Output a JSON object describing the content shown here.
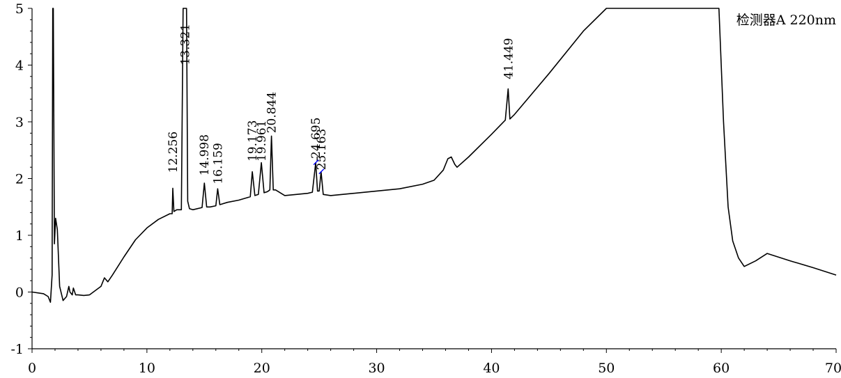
{
  "chart_data": {
    "type": "line",
    "title": "检测器A 220nm",
    "xlabel": "",
    "ylabel": "",
    "xlim": [
      0,
      70
    ],
    "ylim": [
      -1,
      5
    ],
    "x_ticks": [
      0,
      10,
      20,
      30,
      40,
      50,
      60,
      70
    ],
    "y_ticks": [
      -1,
      0,
      1,
      2,
      3,
      4,
      5
    ],
    "grid": false,
    "colors": {
      "trace": "#000000",
      "annotation_marker": "#0000ff"
    },
    "peak_labels": [
      {
        "label": "12.256",
        "x": 12.256
      },
      {
        "label": "13.321",
        "x": 13.321
      },
      {
        "label": "14.998",
        "x": 14.998
      },
      {
        "label": "16.159",
        "x": 16.159
      },
      {
        "label": "19.173",
        "x": 19.173
      },
      {
        "label": "19.961",
        "x": 19.961
      },
      {
        "label": "20.844",
        "x": 20.844
      },
      {
        "label": "24.695",
        "x": 24.695
      },
      {
        "label": "25.163",
        "x": 25.163
      },
      {
        "label": "41.449",
        "x": 41.449
      }
    ],
    "series": [
      {
        "x": [
          0.0,
          1.0,
          1.4,
          1.6,
          1.75,
          1.8,
          1.85,
          1.95,
          2.05,
          2.2,
          2.4,
          2.7,
          3.0,
          3.2,
          3.3,
          3.5,
          3.6,
          3.8,
          4.0,
          4.5,
          5.0,
          6.0,
          6.3,
          6.6,
          7.0,
          8.0,
          9.0,
          10.0,
          11.0,
          12.0,
          12.2,
          12.256,
          12.35,
          12.6,
          13.0,
          13.15,
          13.3,
          13.45,
          13.55,
          13.7,
          14.0,
          14.8,
          14.998,
          15.2,
          15.5,
          16.0,
          16.159,
          16.35,
          17.0,
          18.0,
          19.0,
          19.173,
          19.4,
          19.7,
          19.961,
          20.2,
          20.5,
          20.7,
          20.844,
          21.0,
          21.2,
          22.0,
          23.0,
          24.0,
          24.4,
          24.695,
          24.85,
          25.0,
          25.163,
          25.35,
          26.0,
          28.0,
          30.0,
          32.0,
          34.0,
          35.0,
          35.8,
          36.2,
          36.5,
          36.8,
          37.0,
          38.0,
          40.0,
          41.2,
          41.449,
          41.6,
          42.0,
          45.0,
          48.0,
          50.0,
          52.0,
          53.0,
          56.0,
          59.0,
          59.8,
          60.2,
          60.6,
          61.0,
          61.5,
          62.0,
          63.0,
          64.0,
          66.0,
          68.0,
          70.0
        ],
        "values": [
          0.0,
          -0.03,
          -0.08,
          -0.18,
          0.3,
          5.0,
          5.0,
          0.85,
          1.3,
          1.1,
          0.1,
          -0.15,
          -0.08,
          0.1,
          0.0,
          -0.05,
          0.07,
          -0.05,
          -0.05,
          -0.06,
          -0.05,
          0.1,
          0.25,
          0.18,
          0.3,
          0.62,
          0.92,
          1.13,
          1.28,
          1.38,
          1.38,
          1.83,
          1.42,
          1.45,
          1.45,
          5.0,
          5.0,
          5.0,
          1.6,
          1.47,
          1.45,
          1.49,
          1.92,
          1.5,
          1.5,
          1.52,
          1.82,
          1.54,
          1.58,
          1.62,
          1.68,
          2.12,
          1.7,
          1.72,
          2.28,
          1.75,
          1.77,
          1.8,
          2.75,
          1.8,
          1.8,
          1.7,
          1.72,
          1.74,
          1.76,
          2.28,
          1.78,
          1.78,
          2.12,
          1.72,
          1.7,
          1.74,
          1.78,
          1.82,
          1.9,
          1.97,
          2.15,
          2.35,
          2.38,
          2.25,
          2.2,
          2.38,
          2.78,
          3.03,
          3.58,
          3.05,
          3.13,
          3.85,
          4.6,
          5.0,
          5.0,
          5.0,
          5.0,
          5.0,
          5.0,
          3.0,
          1.5,
          0.9,
          0.6,
          0.45,
          0.55,
          0.68,
          0.55,
          0.43,
          0.3
        ]
      }
    ]
  }
}
